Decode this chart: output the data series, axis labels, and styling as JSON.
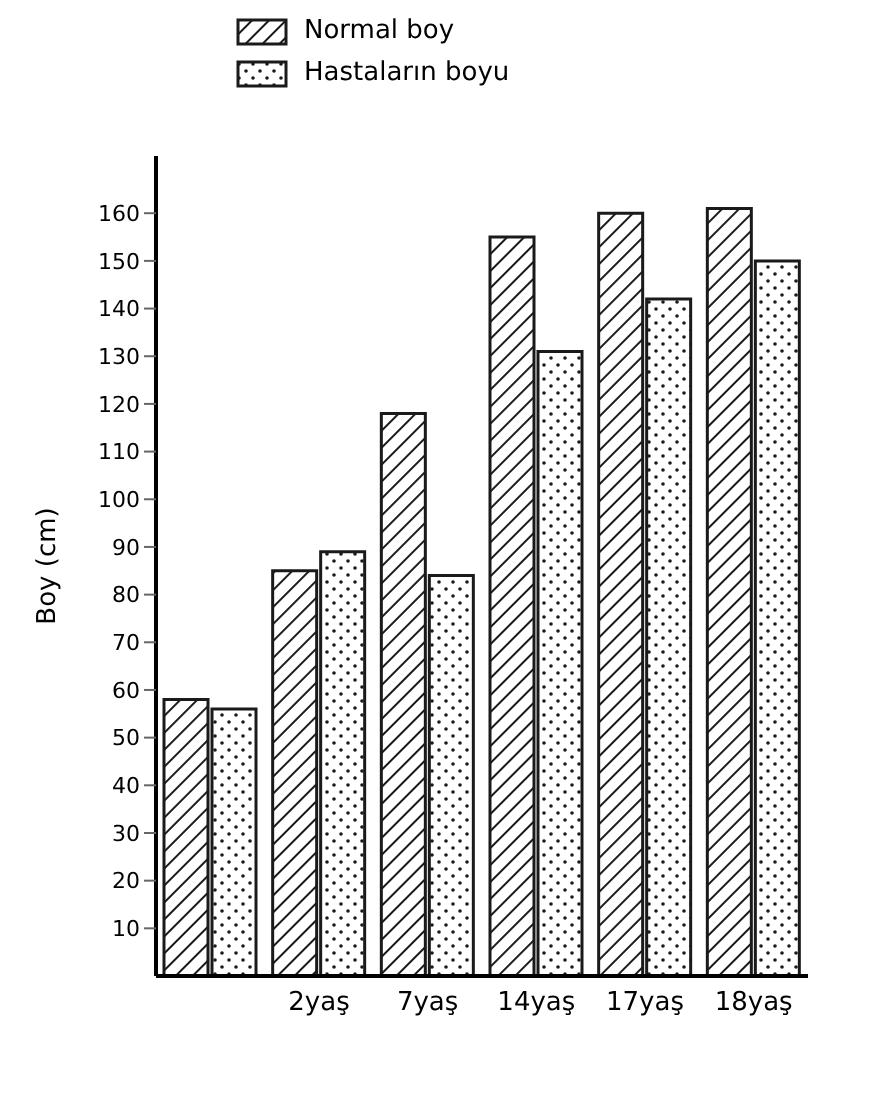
{
  "chart_data": {
    "type": "bar",
    "ylabel": "Boy (cm)",
    "categories": [
      null,
      "2yaş",
      "7yaş",
      "14yaş",
      "17yaş",
      "18yaş"
    ],
    "series": [
      {
        "name": "Normal boy",
        "color": "#1a1a1a",
        "values": [
          58,
          85,
          118,
          155,
          160,
          161
        ]
      },
      {
        "name": "Hastaların boyu",
        "color": "#1a1a1a",
        "values": [
          56,
          89,
          84,
          131,
          142,
          150
        ]
      }
    ],
    "ylim": [
      0,
      172
    ],
    "yticks": [
      10,
      20,
      30,
      40,
      50,
      60,
      70,
      80,
      90,
      100,
      110,
      120,
      130,
      140,
      150,
      160
    ],
    "legend": "top"
  }
}
